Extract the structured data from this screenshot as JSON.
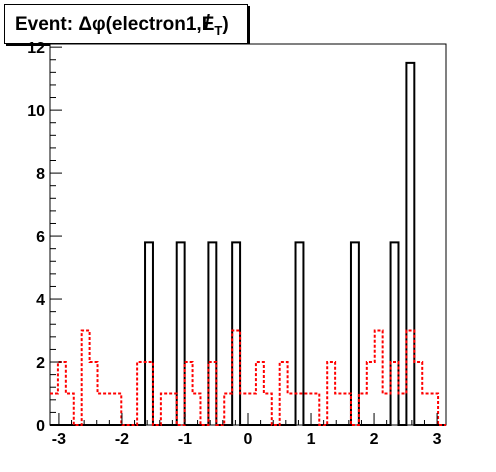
{
  "title": "Event: Δφ(electron1,E̸T)",
  "title_parts": {
    "prefix": "Event: ",
    "main": "Δφ(electron1,",
    "met": "E",
    "sub": "T",
    "close": ")"
  },
  "chart_data": {
    "type": "histogram",
    "title": "Event: Δφ(electron1,E̸T)",
    "xlabel": "",
    "ylabel": "",
    "xlim": [
      -3.14159,
      3.14159
    ],
    "ylim": [
      0,
      12.1
    ],
    "grid": false,
    "x_ticks": [
      -3,
      -2,
      -1,
      0,
      1,
      2,
      3
    ],
    "y_ticks": [
      0,
      2,
      4,
      6,
      8,
      10,
      12
    ],
    "bins": 50,
    "series": [
      {
        "style": "solid",
        "color": "#000000",
        "values": [
          0,
          0,
          0,
          0,
          0,
          0,
          0,
          0,
          0,
          0,
          0,
          0,
          5.8,
          0,
          0,
          0,
          5.8,
          0,
          0,
          0,
          5.8,
          0,
          0,
          5.8,
          0,
          0,
          0,
          0,
          0,
          0,
          0,
          5.8,
          0,
          0,
          0,
          0,
          0,
          0,
          5.8,
          0,
          0,
          0,
          0,
          5.8,
          0,
          11.5,
          0,
          0,
          0,
          0
        ]
      },
      {
        "style": "dotted",
        "color": "#ff0000",
        "values": [
          1,
          2,
          1,
          0,
          3,
          2,
          1,
          1,
          1,
          0,
          0,
          2,
          2,
          0,
          1,
          1,
          0,
          2,
          1,
          0,
          2,
          0,
          1,
          3,
          1,
          1,
          2,
          1,
          0,
          2,
          1,
          1,
          1,
          1,
          0,
          2,
          1,
          1,
          0,
          1,
          2,
          3,
          1,
          2,
          1,
          3,
          2,
          1,
          1,
          0
        ]
      }
    ]
  }
}
